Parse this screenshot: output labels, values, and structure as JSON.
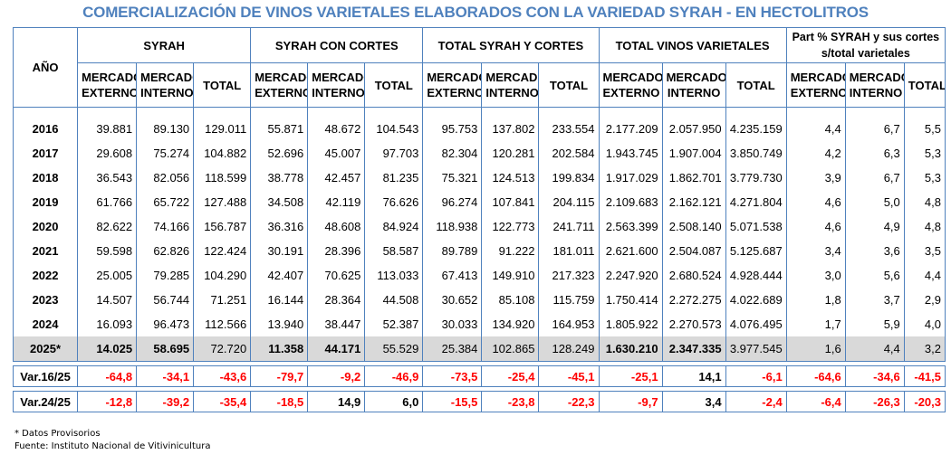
{
  "title": "COMERCIALIZACIÓN DE VINOS VARIETALES ELABORADOS CON LA VARIEDAD SYRAH - EN HECTOLITROS",
  "header": {
    "year_label": "AÑO",
    "groups": [
      "SYRAH",
      "SYRAH CON CORTES",
      "TOTAL SYRAH Y CORTES",
      "TOTAL VINOS VARIETALES",
      "Part % SYRAH y sus cortes s/total varietales"
    ],
    "sub": {
      "ext_line1": "MERCADO",
      "ext_line2": "EXTERNO",
      "int_line1": "MERCADO",
      "int_line2": "INTERNO",
      "total": "TOTAL"
    }
  },
  "rows": [
    {
      "year": "2016",
      "v": [
        "39.881",
        "89.130",
        "129.011",
        "55.871",
        "48.672",
        "104.543",
        "95.753",
        "137.802",
        "233.554",
        "2.177.209",
        "2.057.950",
        "4.235.159",
        "4,4",
        "6,7",
        "5,5"
      ]
    },
    {
      "year": "2017",
      "v": [
        "29.608",
        "75.274",
        "104.882",
        "52.696",
        "45.007",
        "97.703",
        "82.304",
        "120.281",
        "202.584",
        "1.943.745",
        "1.907.004",
        "3.850.749",
        "4,2",
        "6,3",
        "5,3"
      ]
    },
    {
      "year": "2018",
      "v": [
        "36.543",
        "82.056",
        "118.599",
        "38.778",
        "42.457",
        "81.235",
        "75.321",
        "124.513",
        "199.834",
        "1.917.029",
        "1.862.701",
        "3.779.730",
        "3,9",
        "6,7",
        "5,3"
      ]
    },
    {
      "year": "2019",
      "v": [
        "61.766",
        "65.722",
        "127.488",
        "34.508",
        "42.119",
        "76.626",
        "96.274",
        "107.841",
        "204.115",
        "2.109.683",
        "2.162.121",
        "4.271.804",
        "4,6",
        "5,0",
        "4,8"
      ]
    },
    {
      "year": "2020",
      "v": [
        "82.622",
        "74.166",
        "156.787",
        "36.316",
        "48.608",
        "84.924",
        "118.938",
        "122.773",
        "241.711",
        "2.563.399",
        "2.508.140",
        "5.071.538",
        "4,6",
        "4,9",
        "4,8"
      ]
    },
    {
      "year": "2021",
      "v": [
        "59.598",
        "62.826",
        "122.424",
        "30.191",
        "28.396",
        "58.587",
        "89.789",
        "91.222",
        "181.011",
        "2.621.600",
        "2.504.087",
        "5.125.687",
        "3,4",
        "3,6",
        "3,5"
      ]
    },
    {
      "year": "2022",
      "v": [
        "25.005",
        "79.285",
        "104.290",
        "42.407",
        "70.625",
        "113.033",
        "67.413",
        "149.910",
        "217.323",
        "2.247.920",
        "2.680.524",
        "4.928.444",
        "3,0",
        "5,6",
        "4,4"
      ]
    },
    {
      "year": "2023",
      "v": [
        "14.507",
        "56.744",
        "71.251",
        "16.144",
        "28.364",
        "44.508",
        "30.652",
        "85.108",
        "115.759",
        "1.750.414",
        "2.272.275",
        "4.022.689",
        "1,8",
        "3,7",
        "2,9"
      ]
    },
    {
      "year": "2024",
      "v": [
        "16.093",
        "96.473",
        "112.566",
        "13.940",
        "38.447",
        "52.387",
        "30.033",
        "134.920",
        "164.953",
        "1.805.922",
        "2.270.573",
        "4.076.495",
        "1,7",
        "5,9",
        "4,0"
      ]
    },
    {
      "year": "2025*",
      "v": [
        "14.025",
        "58.695",
        "72.720",
        "11.358",
        "44.171",
        "55.529",
        "25.384",
        "102.865",
        "128.249",
        "1.630.210",
        "2.347.335",
        "3.977.545",
        "1,6",
        "4,4",
        "3,2"
      ]
    }
  ],
  "variations": [
    {
      "label": "Var.16/25",
      "v": [
        "-64,8",
        "-34,1",
        "-43,6",
        "-79,7",
        "-9,2",
        "-46,9",
        "-73,5",
        "-25,4",
        "-45,1",
        "-25,1",
        "14,1",
        "-6,1",
        "-64,6",
        "-34,6",
        "-41,5"
      ]
    },
    {
      "label": "Var.24/25",
      "v": [
        "-12,8",
        "-39,2",
        "-35,4",
        "-18,5",
        "14,9",
        "6,0",
        "-15,5",
        "-23,8",
        "-22,3",
        "-9,7",
        "3,4",
        "-2,4",
        "-6,4",
        "-26,3",
        "-20,3"
      ]
    }
  ],
  "notes": {
    "provisional": "* Datos Provisorios",
    "source": "Fuente: Instituto Nacional de Vitivinicultura"
  },
  "colors": {
    "title": "#4f81bd",
    "border": "#4f81bd",
    "negative": "#ff0000",
    "provisional_row_bg": "#d9d9d9"
  }
}
